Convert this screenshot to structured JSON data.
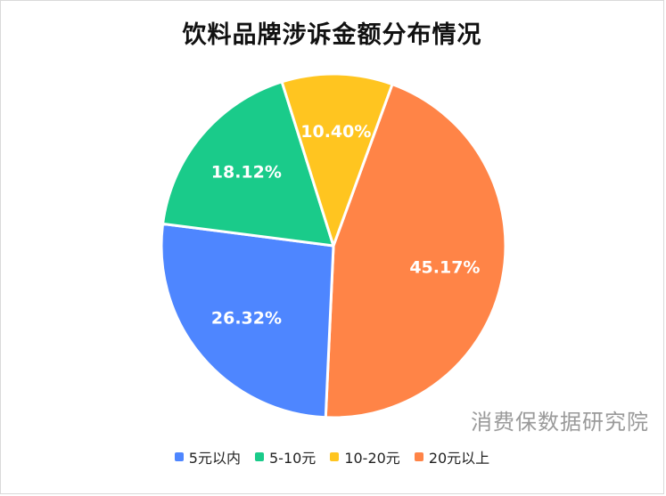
{
  "chart_data": {
    "type": "pie",
    "title": "饮料品牌涉诉金额分布情况",
    "legend_position": "bottom",
    "slices": [
      {
        "name": "20元以上",
        "value": 45.17,
        "label": "45.17%",
        "color": "#FF8447"
      },
      {
        "name": "5元以内",
        "value": 26.32,
        "label": "26.32%",
        "color": "#4E86FF"
      },
      {
        "name": "5-10元",
        "value": 18.12,
        "label": "18.12%",
        "color": "#1ACB8A"
      },
      {
        "name": "10-20元",
        "value": 10.4,
        "label": "10.40%",
        "color": "#FFC520"
      }
    ],
    "legend": [
      {
        "name": "5元以内",
        "color": "#4E86FF"
      },
      {
        "name": "5-10元",
        "color": "#1ACB8A"
      },
      {
        "name": "10-20元",
        "color": "#FFC520"
      },
      {
        "name": "20元以上",
        "color": "#FF8447"
      }
    ]
  },
  "watermark": "消费保数据研究院"
}
